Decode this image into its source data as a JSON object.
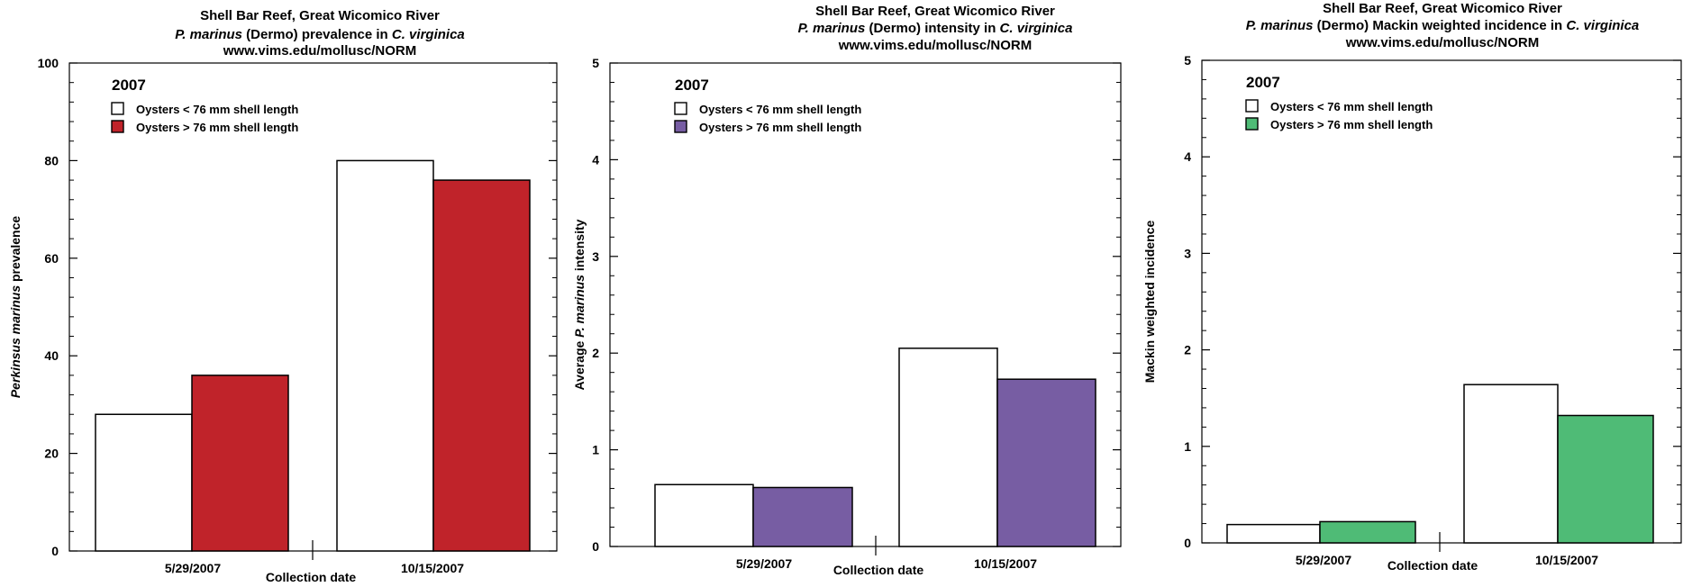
{
  "chart_data": [
    {
      "type": "bar",
      "title_lines": [
        [
          {
            "text": "Shell Bar Reef, Great Wicomico River"
          }
        ],
        [
          {
            "text": "P. marinus",
            "italic": true
          },
          {
            "text": " (Dermo) prevalence in "
          },
          {
            "text": "C. virginica",
            "italic": true
          }
        ],
        [
          {
            "text": "www.vims.edu/mollusc/NORM"
          }
        ]
      ],
      "ylabel": [
        {
          "text": "Perkinsus marinus",
          "italic": true
        },
        {
          "text": " prevalence"
        }
      ],
      "xlabel": "Collection date",
      "year_label": "2007",
      "categories": [
        "5/29/2007",
        "10/15/2007"
      ],
      "ylim": [
        0,
        100
      ],
      "yticks": [
        0,
        20,
        40,
        60,
        80,
        100
      ],
      "series": [
        {
          "name": "Oysters < 76 mm shell length",
          "values": [
            28,
            80
          ],
          "fill": "#ffffff",
          "legend_text_color": "#000000"
        },
        {
          "name": "Oysters > 76 mm shell length",
          "values": [
            36,
            76
          ],
          "fill": "#c0232a",
          "legend_text_color": "#c0232a"
        }
      ]
    },
    {
      "type": "bar",
      "title_lines": [
        [
          {
            "text": "Shell Bar Reef, Great Wicomico River"
          }
        ],
        [
          {
            "text": "P. marinus",
            "italic": true
          },
          {
            "text": " (Dermo) intensity in "
          },
          {
            "text": "C. virginica",
            "italic": true
          }
        ],
        [
          {
            "text": "www.vims.edu/mollusc/NORM"
          }
        ]
      ],
      "ylabel": [
        {
          "text": "Average "
        },
        {
          "text": "P. marinus",
          "italic": true
        },
        {
          "text": " intensity"
        }
      ],
      "xlabel": "Collection date",
      "year_label": "2007",
      "categories": [
        "5/29/2007",
        "10/15/2007"
      ],
      "ylim": [
        0,
        5
      ],
      "yticks": [
        0,
        1,
        2,
        3,
        4,
        5
      ],
      "series": [
        {
          "name": "Oysters < 76 mm shell length",
          "values": [
            0.64,
            2.05
          ],
          "fill": "#ffffff",
          "legend_text_color": "#000000"
        },
        {
          "name": "Oysters > 76 mm shell length",
          "values": [
            0.61,
            1.73
          ],
          "fill": "#775da3",
          "legend_text_color": "#775da3"
        }
      ]
    },
    {
      "type": "bar",
      "title_lines": [
        [
          {
            "text": "Shell Bar Reef, Great Wicomico River"
          }
        ],
        [
          {
            "text": "P. marinus",
            "italic": true
          },
          {
            "text": " (Dermo) Mackin weighted incidence in "
          },
          {
            "text": "C. virginica",
            "italic": true
          }
        ],
        [
          {
            "text": "www.vims.edu/mollusc/NORM"
          }
        ]
      ],
      "ylabel": [
        {
          "text": "Mackin weighted incidence"
        }
      ],
      "xlabel": "Collection date",
      "year_label": "2007",
      "categories": [
        "5/29/2007",
        "10/15/2007"
      ],
      "ylim": [
        0,
        5
      ],
      "yticks": [
        0,
        1,
        2,
        3,
        4,
        5
      ],
      "series": [
        {
          "name": "Oysters < 76 mm shell length",
          "values": [
            0.19,
            1.64
          ],
          "fill": "#ffffff",
          "legend_text_color": "#000000"
        },
        {
          "name": "Oysters > 76 mm shell length",
          "values": [
            0.22,
            1.32
          ],
          "fill": "#4fbb76",
          "legend_text_color": "#4fbb76"
        }
      ]
    }
  ]
}
